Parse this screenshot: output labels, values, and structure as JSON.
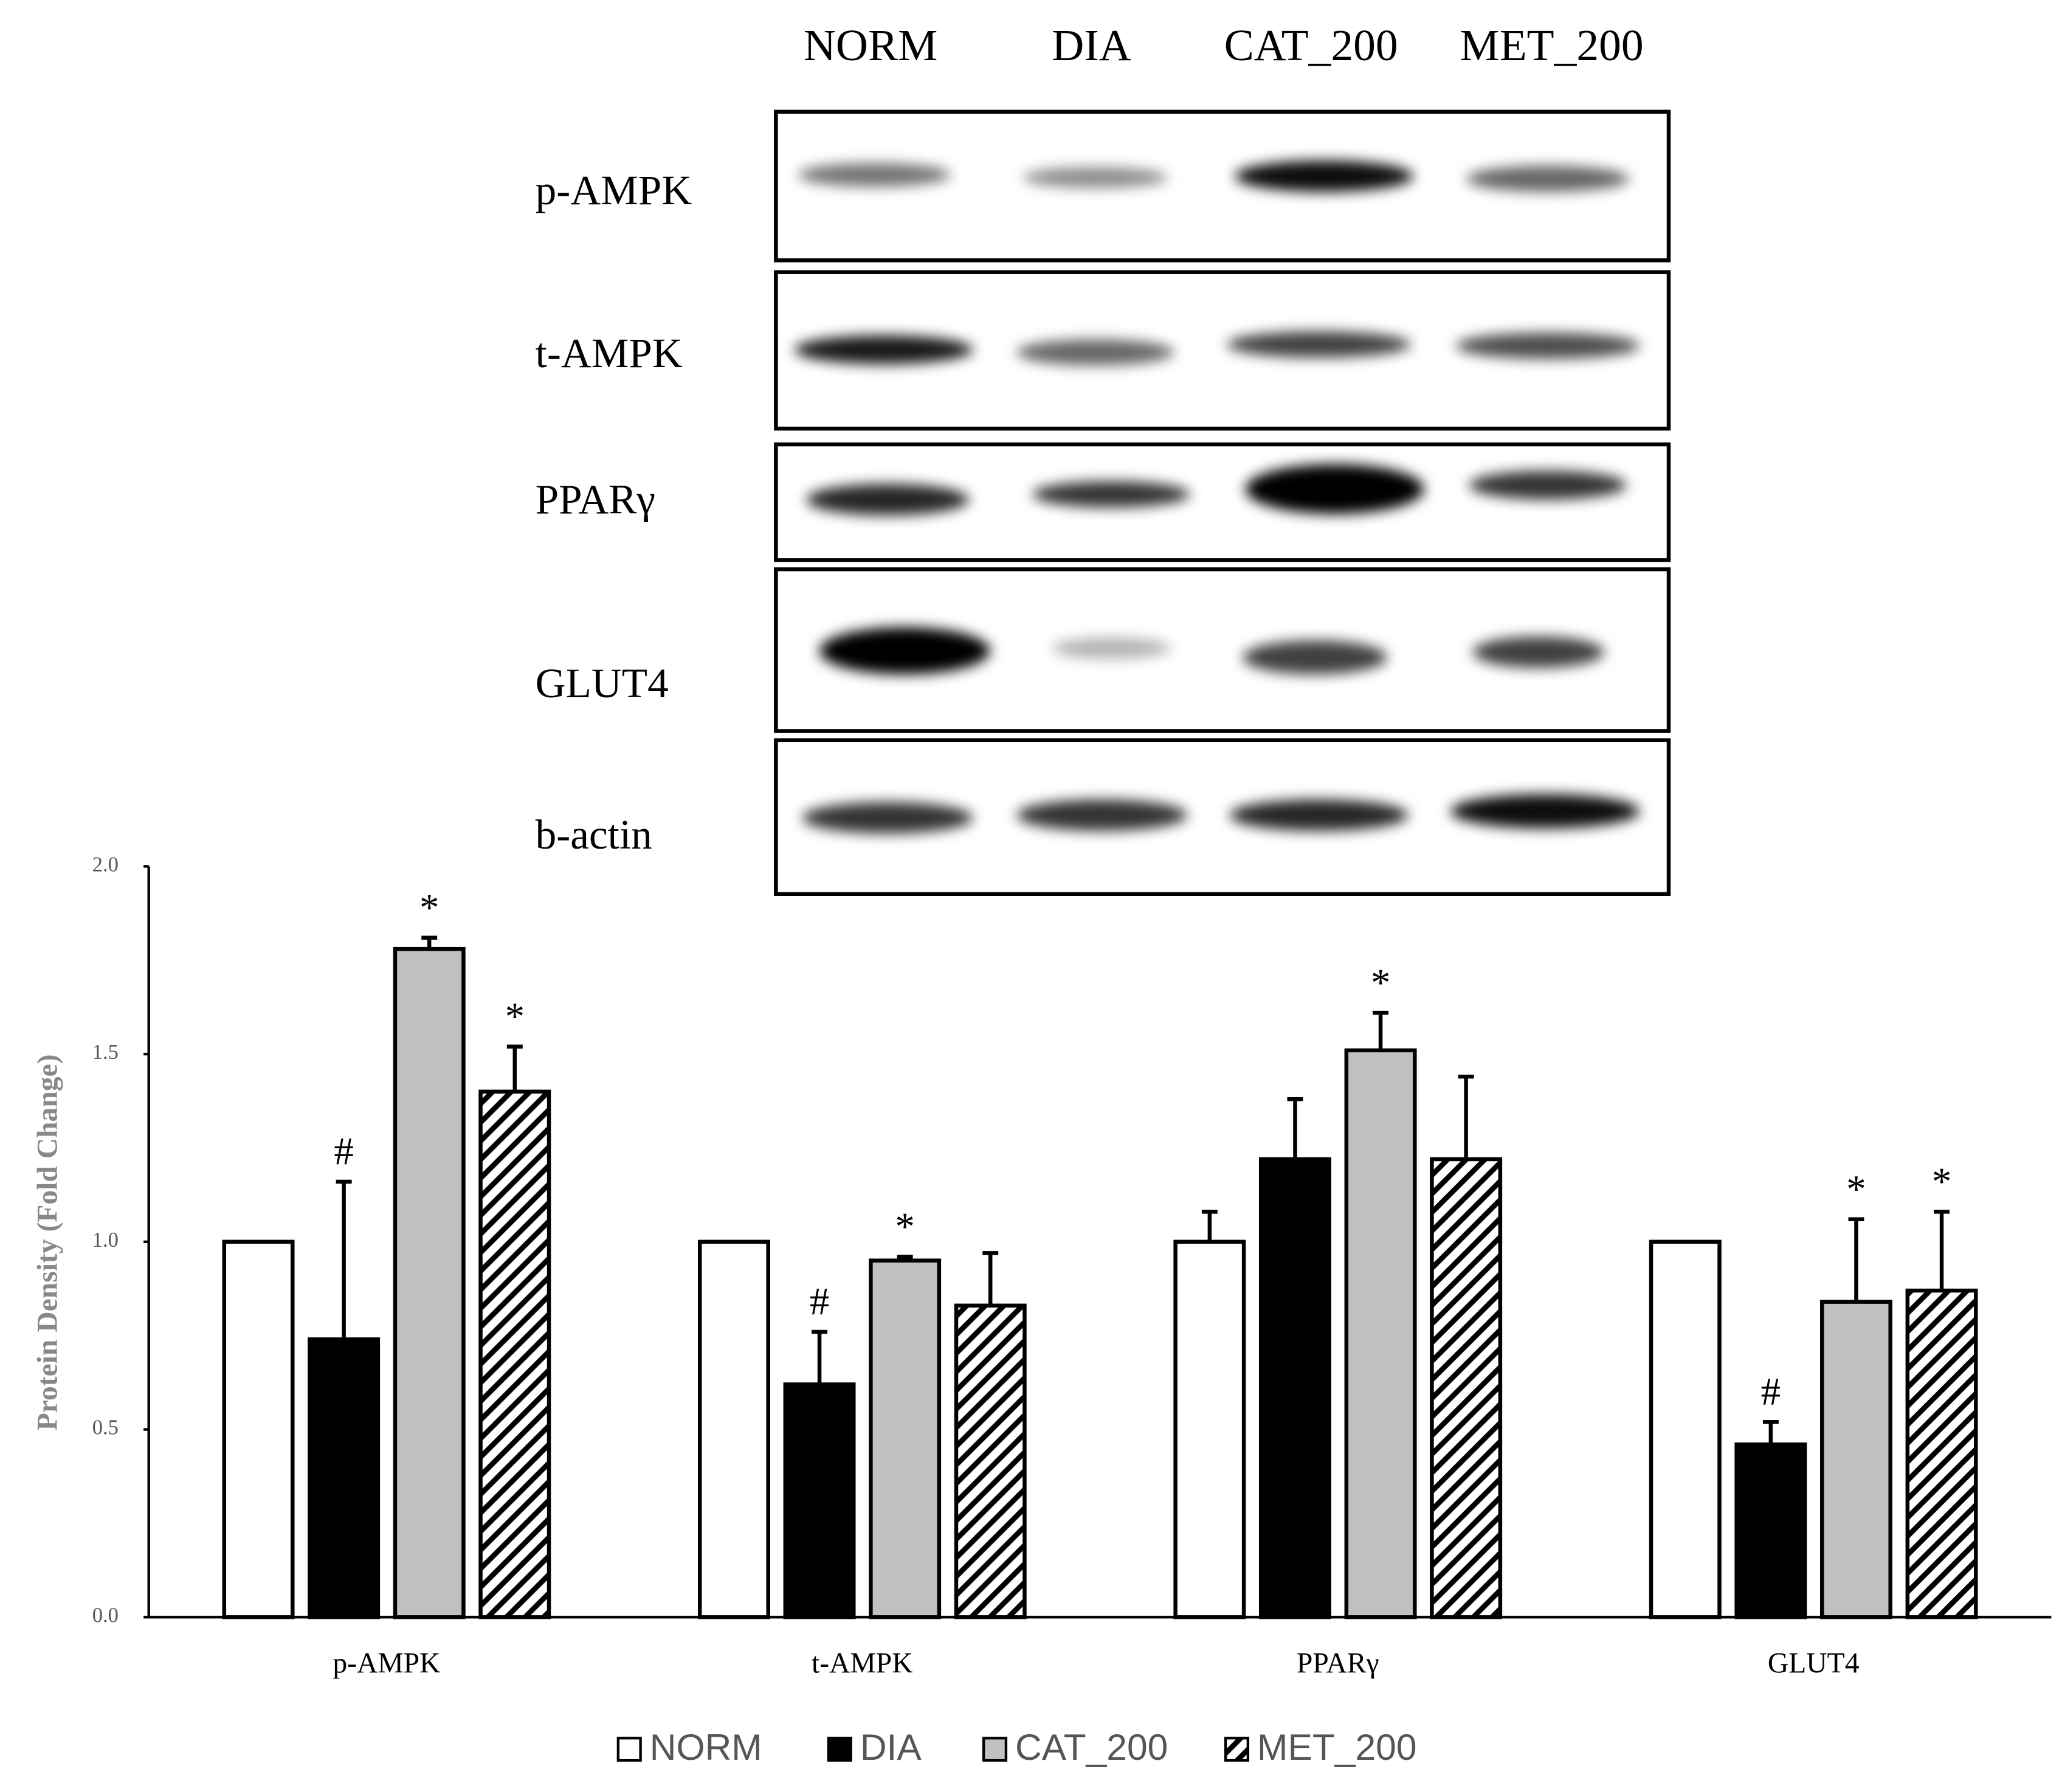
{
  "blot": {
    "lanes": [
      "NORM",
      "DIA",
      "CAT_200",
      "MET_200"
    ],
    "rows": [
      "p-AMPK",
      "t-AMPK",
      "PPARγ",
      "GLUT4",
      "b-actin"
    ]
  },
  "chart_data": {
    "type": "bar",
    "y_label": "Protein Density (Fold Change)",
    "categories": [
      "p-AMPK",
      "t-AMPK",
      "PPARγ",
      "GLUT4"
    ],
    "series": [
      {
        "name": "NORM",
        "color": "#ffffff",
        "values": [
          1.0,
          1.0,
          1.0,
          1.0
        ],
        "errors": [
          0,
          0,
          0.08,
          0
        ]
      },
      {
        "name": "DIA",
        "color": "#000000",
        "values": [
          0.74,
          0.62,
          1.22,
          0.46
        ],
        "errors": [
          0.42,
          0.14,
          0.16,
          0.06
        ],
        "annotations": [
          "#",
          "#",
          null,
          "#"
        ]
      },
      {
        "name": "CAT_200",
        "color": "#c0c0c0",
        "values": [
          1.78,
          0.95,
          1.51,
          0.84
        ],
        "errors": [
          0.03,
          0.01,
          0.1,
          0.22
        ],
        "annotations": [
          "*",
          "*",
          "*",
          "*"
        ]
      },
      {
        "name": "MET_200",
        "color": "#ffffff",
        "hatch": true,
        "values": [
          1.4,
          0.83,
          1.22,
          0.87
        ],
        "errors": [
          0.12,
          0.14,
          0.22,
          0.21
        ],
        "annotations": [
          "*",
          null,
          null,
          "*"
        ]
      }
    ],
    "ylim": [
      0,
      2.0
    ],
    "yticks": [
      {
        "value": 0,
        "label": "0.0"
      },
      {
        "value": 0.5,
        "label": "0.5"
      },
      {
        "value": 1.0,
        "label": "1.0"
      },
      {
        "value": 1.5,
        "label": "1.5"
      },
      {
        "value": 2.0,
        "label": "2.0"
      }
    ],
    "legend": "bottom"
  }
}
